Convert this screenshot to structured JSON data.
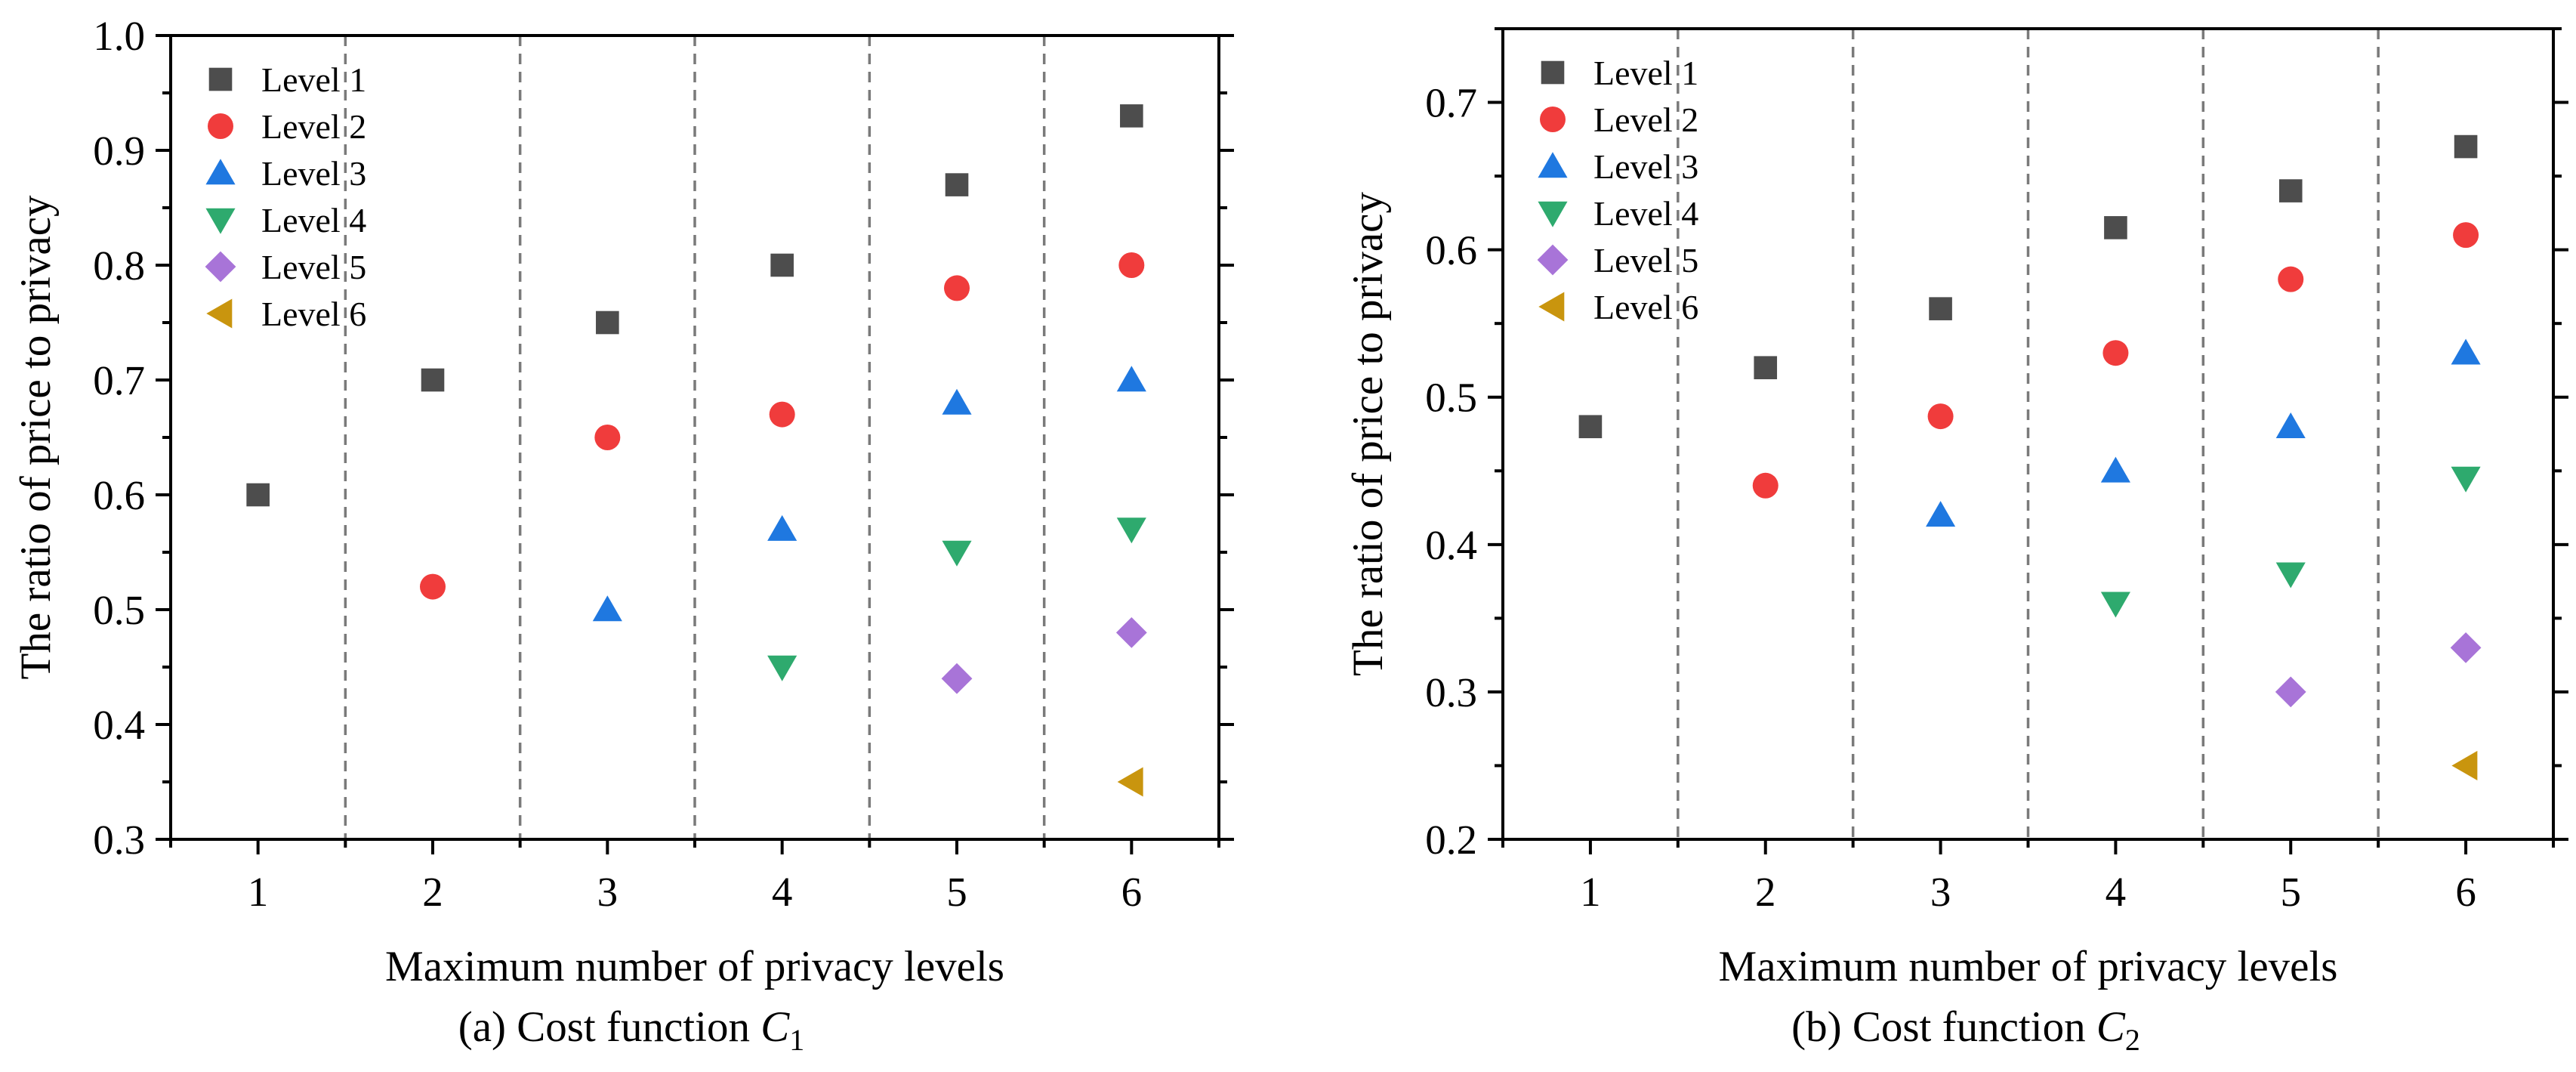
{
  "chart_data": [
    {
      "type": "scatter",
      "panel_id": "a",
      "caption_prefix": "(a)  Cost function ",
      "caption_symbol": "C",
      "caption_subscript": "1",
      "xlabel": "Maximum number of privacy levels",
      "ylabel": "The ratio of price to privacy",
      "xlim": [
        0.5,
        6.5
      ],
      "ylim": [
        0.3,
        1.0
      ],
      "xticks": [
        1,
        2,
        3,
        4,
        5,
        6
      ],
      "xtick_labels": [
        "1",
        "2",
        "3",
        "4",
        "5",
        "6"
      ],
      "yticks": [
        0.3,
        0.4,
        0.5,
        0.6,
        0.7,
        0.8,
        0.9,
        1.0
      ],
      "ytick_labels": [
        "0.3",
        "0.4",
        "0.5",
        "0.6",
        "0.7",
        "0.8",
        "0.9",
        "1.0"
      ],
      "separators": [
        1.5,
        2.5,
        3.5,
        4.5,
        5.5
      ],
      "legend_position": "top-left",
      "series": [
        {
          "name": "Level 1",
          "marker": "square",
          "color": "#4d4d4d",
          "x": [
            1,
            2,
            3,
            4,
            5,
            6
          ],
          "y": [
            0.6,
            0.7,
            0.75,
            0.8,
            0.87,
            0.93
          ]
        },
        {
          "name": "Level 2",
          "marker": "circle",
          "color": "#f03c3c",
          "x": [
            2,
            3,
            4,
            5,
            6
          ],
          "y": [
            0.52,
            0.65,
            0.67,
            0.78,
            0.8
          ]
        },
        {
          "name": "Level 3",
          "marker": "triangle-up",
          "color": "#1f78e0",
          "x": [
            3,
            4,
            5,
            6
          ],
          "y": [
            0.5,
            0.57,
            0.68,
            0.7
          ]
        },
        {
          "name": "Level 4",
          "marker": "triangle-down",
          "color": "#2eaa6e",
          "x": [
            4,
            5,
            6
          ],
          "y": [
            0.45,
            0.55,
            0.57
          ]
        },
        {
          "name": "Level 5",
          "marker": "diamond",
          "color": "#a874d8",
          "x": [
            5,
            6
          ],
          "y": [
            0.44,
            0.48
          ]
        },
        {
          "name": "Level 6",
          "marker": "triangle-left",
          "color": "#c9950e",
          "x": [
            6
          ],
          "y": [
            0.35
          ]
        }
      ]
    },
    {
      "type": "scatter",
      "panel_id": "b",
      "caption_prefix": "(b)  Cost function ",
      "caption_symbol": "C",
      "caption_subscript": "2",
      "xlabel": "Maximum number of privacy levels",
      "ylabel": "The ratio of price to privacy",
      "xlim": [
        0.5,
        6.5
      ],
      "ylim": [
        0.2,
        0.75
      ],
      "xticks": [
        1,
        2,
        3,
        4,
        5,
        6
      ],
      "xtick_labels": [
        "1",
        "2",
        "3",
        "4",
        "5",
        "6"
      ],
      "yticks": [
        0.2,
        0.3,
        0.4,
        0.5,
        0.6,
        0.7
      ],
      "ytick_labels": [
        "0.2",
        "0.3",
        "0.4",
        "0.5",
        "0.6",
        "0.7"
      ],
      "separators": [
        1.5,
        2.5,
        3.5,
        4.5,
        5.5
      ],
      "legend_position": "top-left",
      "series": [
        {
          "name": "Level 1",
          "marker": "square",
          "color": "#4d4d4d",
          "x": [
            1,
            2,
            3,
            4,
            5,
            6
          ],
          "y": [
            0.48,
            0.52,
            0.56,
            0.615,
            0.64,
            0.67
          ]
        },
        {
          "name": "Level 2",
          "marker": "circle",
          "color": "#f03c3c",
          "x": [
            2,
            3,
            4,
            5,
            6
          ],
          "y": [
            0.44,
            0.487,
            0.53,
            0.58,
            0.61
          ]
        },
        {
          "name": "Level 3",
          "marker": "triangle-up",
          "color": "#1f78e0",
          "x": [
            3,
            4,
            5,
            6
          ],
          "y": [
            0.42,
            0.45,
            0.48,
            0.53
          ]
        },
        {
          "name": "Level 4",
          "marker": "triangle-down",
          "color": "#2eaa6e",
          "x": [
            4,
            5,
            6
          ],
          "y": [
            0.36,
            0.38,
            0.445
          ]
        },
        {
          "name": "Level 5",
          "marker": "diamond",
          "color": "#a874d8",
          "x": [
            5,
            6
          ],
          "y": [
            0.3,
            0.33
          ]
        },
        {
          "name": "Level 6",
          "marker": "triangle-left",
          "color": "#c9950e",
          "x": [
            6
          ],
          "y": [
            0.25
          ]
        }
      ]
    }
  ]
}
